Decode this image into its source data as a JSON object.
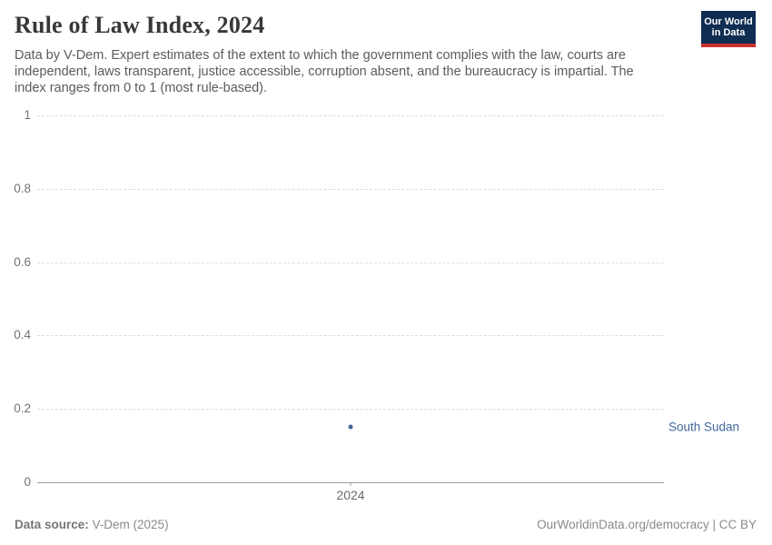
{
  "header": {
    "title": "Rule of Law Index, 2024",
    "subtitle": "Data by V-Dem. Expert estimates of the extent to which the government complies with the law, courts are independent, laws transparent, justice accessible, corruption absent, and the bureaucracy is impartial. The index ranges from 0 to 1 (most rule-based).",
    "logo": {
      "line1": "Our World",
      "line2": "in Data",
      "bg_color": "#0f2d52",
      "accent_color": "#c9302f"
    }
  },
  "chart_data": {
    "type": "scatter",
    "title": "Rule of Law Index, 2024",
    "x": [
      2024
    ],
    "xtick_labels": [
      "2024"
    ],
    "series": [
      {
        "name": "South Sudan",
        "values": [
          0.15
        ],
        "color": "#44669c"
      }
    ],
    "xlabel": "",
    "ylabel": "",
    "ylim": [
      0,
      1
    ],
    "yticks": [
      0,
      0.2,
      0.4,
      0.6,
      0.8,
      1
    ],
    "ytick_labels": [
      "0",
      "0.2",
      "0.4",
      "0.6",
      "0.8",
      "1"
    ],
    "grid": true,
    "gridline_style": "dashed",
    "legend_position": "right-of-point",
    "entity_label": "South Sudan",
    "entity_label_color": "#41679c"
  },
  "footer": {
    "source_label": "Data source:",
    "source_value": " V-Dem (2025)",
    "credit": "OurWorldinData.org/democracy | CC BY"
  }
}
